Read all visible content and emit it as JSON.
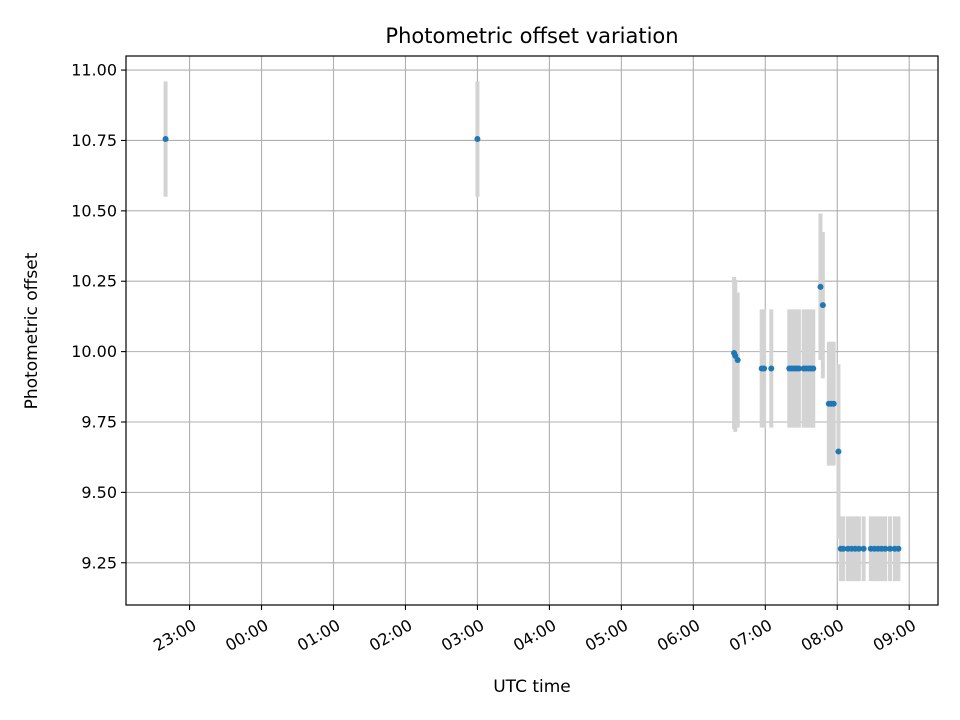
{
  "chart_data": {
    "type": "scatter",
    "title": "Photometric offset variation",
    "xlabel": "UTC time",
    "ylabel": "Photometric offset",
    "x_axis": "time",
    "xlim": [
      "22:07",
      "09:24"
    ],
    "ylim": [
      9.1,
      11.05
    ],
    "x_ticks": [
      "23:00",
      "00:00",
      "01:00",
      "02:00",
      "03:00",
      "04:00",
      "05:00",
      "06:00",
      "07:00",
      "08:00",
      "09:00"
    ],
    "y_ticks": [
      "9.25",
      "9.50",
      "9.75",
      "10.00",
      "10.25",
      "10.50",
      "10.75",
      "11.00"
    ],
    "grid": true,
    "legend": "none",
    "colors": {
      "points": "#1f77b4",
      "error_bars": "#d3d3d3",
      "grid": "#b0b0b0"
    },
    "series": [
      {
        "points": [
          {
            "x": "22:40",
            "y": 10.755,
            "err": 0.205
          },
          {
            "x": "03:00",
            "y": 10.755,
            "err": 0.205
          },
          {
            "x": "06:34",
            "y": 9.995,
            "err": 0.27
          },
          {
            "x": "06:35",
            "y": 9.985,
            "err": 0.27
          },
          {
            "x": "06:37",
            "y": 9.97,
            "err": 0.24
          },
          {
            "x": "06:57",
            "y": 9.94,
            "err": 0.21
          },
          {
            "x": "06:59",
            "y": 9.94,
            "err": 0.21
          },
          {
            "x": "07:05",
            "y": 9.94,
            "err": 0.21
          },
          {
            "x": "07:20",
            "y": 9.94,
            "err": 0.21
          },
          {
            "x": "07:22",
            "y": 9.94,
            "err": 0.21
          },
          {
            "x": "07:24",
            "y": 9.94,
            "err": 0.21
          },
          {
            "x": "07:26",
            "y": 9.94,
            "err": 0.21
          },
          {
            "x": "07:28",
            "y": 9.94,
            "err": 0.21
          },
          {
            "x": "07:32",
            "y": 9.94,
            "err": 0.21
          },
          {
            "x": "07:34",
            "y": 9.94,
            "err": 0.21
          },
          {
            "x": "07:36",
            "y": 9.94,
            "err": 0.21
          },
          {
            "x": "07:38",
            "y": 9.94,
            "err": 0.21
          },
          {
            "x": "07:40",
            "y": 9.94,
            "err": 0.21
          },
          {
            "x": "07:46",
            "y": 10.23,
            "err": 0.26
          },
          {
            "x": "07:48",
            "y": 10.165,
            "err": 0.26
          },
          {
            "x": "07:53",
            "y": 9.815,
            "err": 0.22
          },
          {
            "x": "07:55",
            "y": 9.815,
            "err": 0.22
          },
          {
            "x": "07:57",
            "y": 9.815,
            "err": 0.22
          },
          {
            "x": "08:01",
            "y": 9.645,
            "err": 0.31
          },
          {
            "x": "08:03",
            "y": 9.3,
            "err": 0.115
          },
          {
            "x": "08:05",
            "y": 9.3,
            "err": 0.115
          },
          {
            "x": "08:09",
            "y": 9.3,
            "err": 0.115
          },
          {
            "x": "08:12",
            "y": 9.3,
            "err": 0.115
          },
          {
            "x": "08:15",
            "y": 9.3,
            "err": 0.115
          },
          {
            "x": "08:18",
            "y": 9.3,
            "err": 0.115
          },
          {
            "x": "08:22",
            "y": 9.3,
            "err": 0.115
          },
          {
            "x": "08:28",
            "y": 9.3,
            "err": 0.115
          },
          {
            "x": "08:31",
            "y": 9.3,
            "err": 0.115
          },
          {
            "x": "08:34",
            "y": 9.3,
            "err": 0.115
          },
          {
            "x": "08:37",
            "y": 9.3,
            "err": 0.115
          },
          {
            "x": "08:40",
            "y": 9.3,
            "err": 0.115
          },
          {
            "x": "08:44",
            "y": 9.3,
            "err": 0.115
          },
          {
            "x": "08:48",
            "y": 9.3,
            "err": 0.115
          },
          {
            "x": "08:51",
            "y": 9.3,
            "err": 0.115
          }
        ]
      }
    ]
  }
}
